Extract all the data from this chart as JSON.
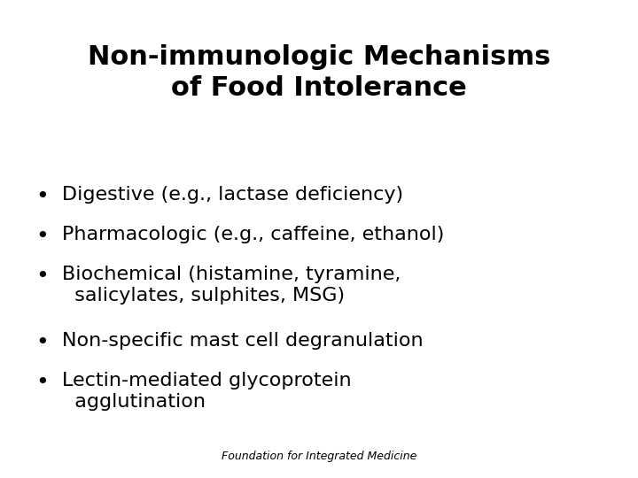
{
  "title_line1": "Non-immunologic Mechanisms",
  "title_line2": "of Food Intolerance",
  "bullets": [
    "Digestive (e.g., lactase deficiency)",
    "Pharmacologic (e.g., caffeine, ethanol)",
    "Biochemical (histamine, tyramine,\n  salicylates, sulphites, MSG)",
    "Non-specific mast cell degranulation",
    "Lectin-mediated glycoprotein\n  agglutination"
  ],
  "footer": "Foundation for Integrated Medicine",
  "bg_color": "#ffffff",
  "text_color": "#000000",
  "title_fontsize": 22,
  "bullet_fontsize": 16,
  "footer_fontsize": 9
}
